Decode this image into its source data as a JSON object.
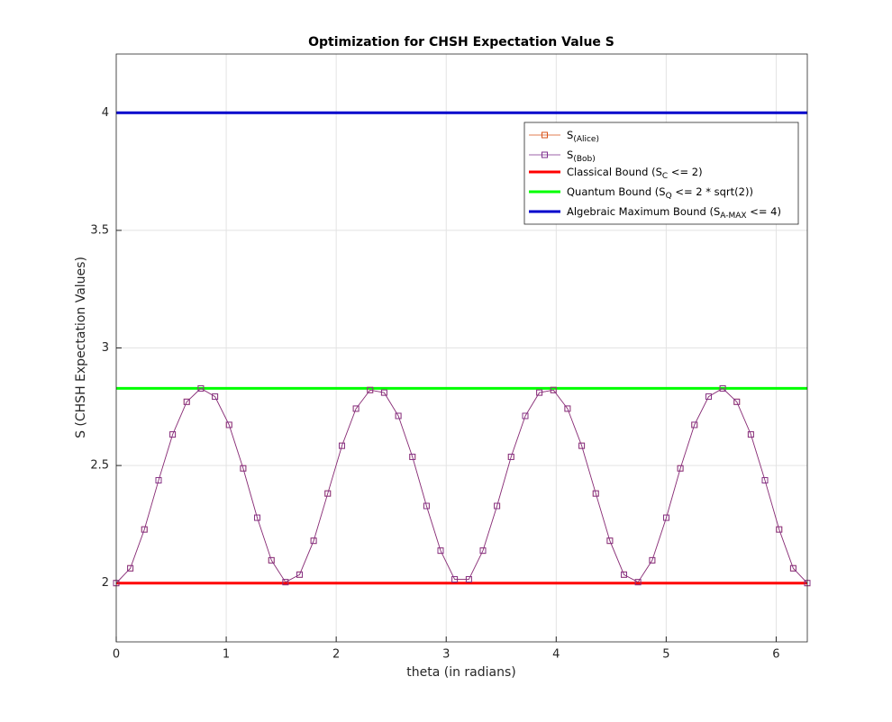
{
  "chart_data": {
    "type": "line",
    "title": "Optimization for CHSH Expectation Value S",
    "xlabel": "theta (in radians)",
    "ylabel": "S (CHSH Expectation Values)",
    "x": [
      0,
      0.128,
      0.256,
      0.385,
      0.513,
      0.641,
      0.769,
      0.898,
      1.026,
      1.154,
      1.282,
      1.411,
      1.539,
      1.667,
      1.795,
      1.923,
      2.052,
      2.18,
      2.308,
      2.436,
      2.565,
      2.693,
      2.821,
      2.949,
      3.077,
      3.206,
      3.334,
      3.462,
      3.59,
      3.719,
      3.847,
      3.975,
      4.103,
      4.232,
      4.36,
      4.488,
      4.616,
      4.744,
      4.873,
      5.001,
      5.129,
      5.257,
      5.386,
      5.514,
      5.642,
      5.77,
      5.898,
      6.027,
      6.155,
      6.283
    ],
    "series": [
      {
        "name": [
          "S",
          "(Alice)"
        ],
        "color": "#d95319",
        "marker": "square",
        "values": [
          2,
          2.063,
          2.228,
          2.437,
          2.632,
          2.771,
          2.828,
          2.793,
          2.673,
          2.488,
          2.278,
          2.097,
          2.004,
          2.036,
          2.18,
          2.381,
          2.584,
          2.742,
          2.821,
          2.81,
          2.711,
          2.537,
          2.328,
          2.138,
          2.016,
          2.016,
          2.138,
          2.328,
          2.537,
          2.711,
          2.81,
          2.821,
          2.742,
          2.584,
          2.381,
          2.18,
          2.036,
          2.004,
          2.097,
          2.278,
          2.488,
          2.673,
          2.793,
          2.828,
          2.771,
          2.632,
          2.437,
          2.228,
          2.063,
          2
        ]
      },
      {
        "name": [
          "S",
          "(Bob)"
        ],
        "color": "#7e2f8e",
        "marker": "square",
        "values": [
          2,
          2.063,
          2.228,
          2.437,
          2.632,
          2.771,
          2.828,
          2.793,
          2.673,
          2.488,
          2.278,
          2.097,
          2.004,
          2.036,
          2.18,
          2.381,
          2.584,
          2.742,
          2.821,
          2.81,
          2.711,
          2.537,
          2.328,
          2.138,
          2.016,
          2.016,
          2.138,
          2.328,
          2.537,
          2.711,
          2.81,
          2.821,
          2.742,
          2.584,
          2.381,
          2.18,
          2.036,
          2.004,
          2.097,
          2.278,
          2.488,
          2.673,
          2.793,
          2.828,
          2.771,
          2.632,
          2.437,
          2.228,
          2.063,
          2
        ]
      }
    ],
    "hlines": [
      {
        "name": [
          "Classical Bound (S",
          "C",
          " <= 2)"
        ],
        "color": "#ff0000",
        "value": 2
      },
      {
        "name": [
          "Quantum Bound (S",
          "Q",
          " <= 2 * sqrt(2))"
        ],
        "color": "#00ff00",
        "value": 2.828
      },
      {
        "name": [
          "Algebraic Maximum Bound (S",
          "A-MAX",
          " <= 4)"
        ],
        "color": "#0000cc",
        "value": 4
      }
    ],
    "xlim": [
      0,
      6.283
    ],
    "ylim": [
      1.75,
      4.25
    ],
    "xticks": [
      0,
      1,
      2,
      3,
      4,
      5,
      6
    ],
    "yticks": [
      2,
      2.5,
      3,
      3.5,
      4
    ],
    "grid": true,
    "legend": "upper right"
  }
}
